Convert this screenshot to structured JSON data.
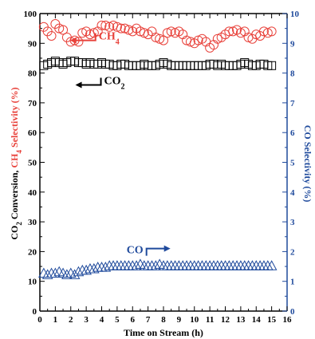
{
  "chart_data": {
    "type": "scatter",
    "title": "",
    "xlabel": "Time on Stream (h)",
    "ylabel_left": {
      "parts": [
        {
          "text": "CO",
          "color": "#000000"
        },
        {
          "text": "2",
          "color": "#000000",
          "sub": true
        },
        {
          "text": " Conversion, ",
          "color": "#000000"
        },
        {
          "text": "CH",
          "color": "#e8413a"
        },
        {
          "text": "4",
          "color": "#e8413a",
          "sub": true
        },
        {
          "text": " Selectivity (%)",
          "color": "#e8413a"
        }
      ]
    },
    "ylabel_right": "CO Selectivity (%)",
    "xlim": [
      0,
      16
    ],
    "ylim_left": [
      0,
      100
    ],
    "ylim_right": [
      0,
      10
    ],
    "xticks": [
      0,
      1,
      2,
      3,
      4,
      5,
      6,
      7,
      8,
      9,
      10,
      11,
      12,
      13,
      14,
      15,
      16
    ],
    "yticks_left": [
      0,
      10,
      20,
      30,
      40,
      50,
      60,
      70,
      80,
      90,
      100
    ],
    "yticks_right": [
      0,
      1,
      2,
      3,
      4,
      5,
      6,
      7,
      8,
      9,
      10
    ],
    "grid": false,
    "colors": {
      "ch4": "#e8413a",
      "co2": "#000000",
      "co": "#1f4a9c",
      "right_axis": "#1f4a9c"
    },
    "series": [
      {
        "key": "ch4",
        "axis": "left",
        "marker": "circle",
        "x": [
          0.25,
          0.5,
          0.75,
          1.0,
          1.25,
          1.5,
          1.75,
          2.0,
          2.25,
          2.5,
          2.75,
          3.0,
          3.25,
          3.5,
          3.75,
          4.0,
          4.25,
          4.5,
          4.75,
          5.0,
          5.25,
          5.5,
          5.75,
          6.0,
          6.25,
          6.5,
          6.75,
          7.0,
          7.25,
          7.5,
          7.75,
          8.0,
          8.25,
          8.5,
          8.75,
          9.0,
          9.25,
          9.5,
          9.75,
          10.0,
          10.25,
          10.5,
          10.75,
          11.0,
          11.25,
          11.5,
          11.75,
          12.0,
          12.25,
          12.5,
          12.75,
          13.0,
          13.25,
          13.5,
          13.75,
          14.0,
          14.25,
          14.5,
          14.75,
          15.0
        ],
        "values": [
          95.5,
          94,
          92.5,
          96.5,
          95,
          94.5,
          92,
          90.5,
          91,
          90.5,
          93.5,
          94,
          93,
          93.5,
          94,
          96,
          96,
          95.5,
          96,
          95.5,
          95,
          95,
          94.5,
          94,
          95,
          94,
          93.5,
          93,
          94,
          92,
          91.5,
          91,
          93.5,
          94,
          93.5,
          94,
          93,
          91,
          90.5,
          90,
          91,
          91.5,
          90.5,
          88.5,
          89.5,
          91.5,
          92,
          93,
          94,
          94,
          94.5,
          93.5,
          94,
          92,
          91.5,
          93,
          92.5,
          94,
          93.5,
          94
        ]
      },
      {
        "key": "co2",
        "axis": "left",
        "marker": "square",
        "x": [
          0.25,
          0.5,
          0.75,
          1.0,
          1.25,
          1.5,
          1.75,
          2.0,
          2.25,
          2.5,
          2.75,
          3.0,
          3.25,
          3.5,
          3.75,
          4.0,
          4.25,
          4.5,
          4.75,
          5.0,
          5.25,
          5.5,
          5.75,
          6.0,
          6.25,
          6.5,
          6.75,
          7.0,
          7.25,
          7.5,
          7.75,
          8.0,
          8.25,
          8.5,
          8.75,
          9.0,
          9.25,
          9.5,
          9.75,
          10.0,
          10.25,
          10.5,
          10.75,
          11.0,
          11.25,
          11.5,
          11.75,
          12.0,
          12.25,
          12.5,
          12.75,
          13.0,
          13.25,
          13.5,
          13.75,
          14.0,
          14.25,
          14.5,
          14.75,
          15.0
        ],
        "values": [
          82.5,
          83,
          83.5,
          84,
          83.5,
          83,
          83.5,
          84,
          84,
          83.5,
          83.5,
          83,
          83.5,
          83,
          83,
          83.5,
          83,
          83,
          82.5,
          82.5,
          83,
          83,
          82.5,
          82.5,
          82.5,
          82.5,
          83,
          82.5,
          82.5,
          82.5,
          83,
          83.5,
          83,
          82.5,
          82.5,
          82.5,
          82.5,
          82.5,
          82.5,
          82.5,
          82.5,
          82.5,
          82.5,
          83,
          83,
          82.5,
          83,
          82.5,
          82.5,
          82.5,
          82.5,
          83,
          83.5,
          83,
          82.5,
          82.5,
          83,
          83,
          82.5,
          82.5
        ]
      },
      {
        "key": "co",
        "axis": "right",
        "marker": "triangle",
        "x": [
          0.25,
          0.5,
          0.75,
          1.0,
          1.25,
          1.5,
          1.75,
          2.0,
          2.25,
          2.5,
          2.75,
          3.0,
          3.25,
          3.5,
          3.75,
          4.0,
          4.25,
          4.5,
          4.75,
          5.0,
          5.25,
          5.5,
          5.75,
          6.0,
          6.25,
          6.5,
          6.75,
          7.0,
          7.25,
          7.5,
          7.75,
          8.0,
          8.25,
          8.5,
          8.75,
          9.0,
          9.25,
          9.5,
          9.75,
          10.0,
          10.25,
          10.5,
          10.75,
          11.0,
          11.25,
          11.5,
          11.75,
          12.0,
          12.25,
          12.5,
          12.75,
          13.0,
          13.25,
          13.5,
          13.75,
          14.0,
          14.25,
          14.5,
          14.75,
          15.0
        ],
        "values": [
          1.25,
          1.2,
          1.25,
          1.25,
          1.3,
          1.25,
          1.2,
          1.25,
          1.2,
          1.3,
          1.35,
          1.35,
          1.4,
          1.4,
          1.45,
          1.45,
          1.45,
          1.5,
          1.5,
          1.5,
          1.5,
          1.5,
          1.5,
          1.5,
          1.5,
          1.55,
          1.5,
          1.5,
          1.5,
          1.5,
          1.55,
          1.5,
          1.5,
          1.5,
          1.5,
          1.5,
          1.5,
          1.5,
          1.5,
          1.5,
          1.5,
          1.5,
          1.5,
          1.5,
          1.5,
          1.5,
          1.5,
          1.5,
          1.5,
          1.5,
          1.5,
          1.5,
          1.5,
          1.5,
          1.5,
          1.5,
          1.5,
          1.5,
          1.5,
          1.5
        ]
      }
    ],
    "annotations": [
      {
        "key": "ch4",
        "axis": "left",
        "label": "CH",
        "sub": "4",
        "x": 3.6,
        "y": 91,
        "arrow": "left",
        "color": "#e8413a"
      },
      {
        "key": "co2",
        "axis": "left",
        "label": "CO",
        "sub": "2",
        "x": 3.95,
        "y": 76,
        "arrow": "left",
        "color": "#000000"
      },
      {
        "key": "co",
        "axis": "right",
        "label": "CO",
        "sub": "",
        "x": 6.9,
        "y": 2.1,
        "arrow": "right",
        "color": "#1f4a9c"
      }
    ]
  }
}
